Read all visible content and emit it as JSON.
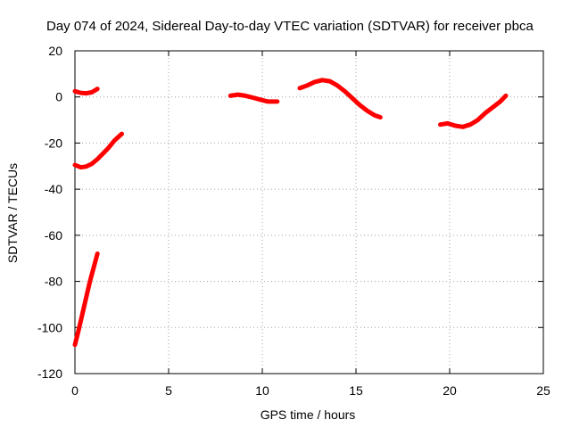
{
  "chart_data": {
    "type": "line",
    "title": "Day 074 of 2024, Sidereal Day-to-day VTEC variation (SDTVAR) for receiver pbca",
    "xlabel": "GPS time / hours",
    "ylabel": "SDTVAR / TECUs",
    "xlim": [
      0,
      25
    ],
    "ylim": [
      -120,
      20
    ],
    "xticks": [
      0,
      5,
      10,
      15,
      20,
      25
    ],
    "yticks": [
      -120,
      -100,
      -80,
      -60,
      -40,
      -20,
      0,
      20
    ],
    "xtick_labels": [
      "0",
      "5",
      "10",
      "15",
      "20",
      "25"
    ],
    "ytick_labels": [
      "-120",
      "-100",
      "-80",
      "-60",
      "-40",
      "-20",
      "0",
      "20"
    ],
    "grid": true,
    "legend": false,
    "series_color": "#ff0000",
    "series": [
      {
        "x": [
          0.0,
          0.3,
          0.6,
          0.9,
          1.2
        ],
        "y": [
          2.5,
          1.8,
          1.6,
          2.0,
          3.5
        ]
      },
      {
        "x": [
          0.0,
          0.3,
          0.6,
          0.9,
          1.2,
          1.5,
          1.8,
          2.1,
          2.5
        ],
        "y": [
          -29.5,
          -30.5,
          -30.2,
          -29.0,
          -27.0,
          -24.5,
          -22.0,
          -19.0,
          -16.0
        ]
      },
      {
        "x": [
          0.0,
          0.2,
          0.4,
          0.6,
          0.8,
          1.0,
          1.2
        ],
        "y": [
          -107.5,
          -101.0,
          -94.0,
          -87.0,
          -80.0,
          -74.0,
          -68.0
        ]
      },
      {
        "x": [
          8.3,
          8.7,
          9.1,
          9.5,
          9.9,
          10.3,
          10.8
        ],
        "y": [
          0.5,
          1.0,
          0.5,
          -0.3,
          -1.2,
          -2.0,
          -2.0
        ]
      },
      {
        "x": [
          12.0,
          12.4,
          12.8,
          13.2,
          13.6,
          14.0,
          14.4,
          14.8,
          15.2,
          15.6,
          16.0,
          16.3
        ],
        "y": [
          3.8,
          5.0,
          6.5,
          7.3,
          6.8,
          5.0,
          2.5,
          -0.5,
          -3.5,
          -6.0,
          -8.0,
          -8.8
        ]
      },
      {
        "x": [
          19.5,
          19.9,
          20.3,
          20.7,
          21.1,
          21.5,
          21.9,
          22.3,
          22.7,
          23.0
        ],
        "y": [
          -12.0,
          -11.5,
          -12.5,
          -13.0,
          -12.0,
          -10.0,
          -7.0,
          -4.5,
          -2.0,
          0.5
        ]
      }
    ]
  }
}
